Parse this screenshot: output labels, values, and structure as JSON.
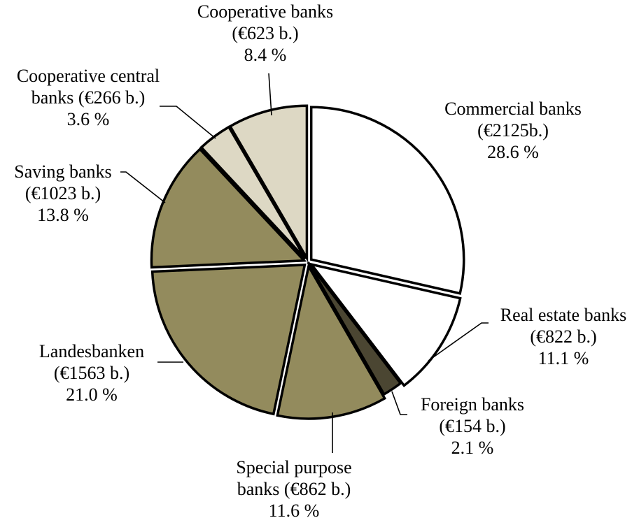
{
  "chart_data": {
    "type": "pie",
    "title": "",
    "start_angle_deg": 0,
    "direction": "clockwise",
    "slices": [
      {
        "id": "commercial",
        "label_lines": [
          "Commercial banks",
          "(€2125b.)",
          "28.6 %"
        ],
        "value": 2125,
        "percent": 28.6,
        "color": "#ffffff",
        "exploded": true
      },
      {
        "id": "real-estate",
        "label_lines": [
          "Real estate banks",
          "(€822 b.)",
          "11.1 %"
        ],
        "value": 822,
        "percent": 11.1,
        "color": "#ffffff",
        "exploded": true
      },
      {
        "id": "foreign",
        "label_lines": [
          "Foreign banks",
          "(€154 b.)",
          "2.1 %"
        ],
        "value": 154,
        "percent": 2.1,
        "color": "#4b4632",
        "exploded": false
      },
      {
        "id": "special-purpose",
        "label_lines": [
          "Special purpose",
          "banks (€862 b.)",
          "11.6 %"
        ],
        "value": 862,
        "percent": 11.6,
        "color": "#938b5d",
        "exploded": true
      },
      {
        "id": "landesbanken",
        "label_lines": [
          "Landesbanken",
          "(€1563 b.)",
          "21.0 %"
        ],
        "value": 1563,
        "percent": 21.0,
        "color": "#938b5d",
        "exploded": true
      },
      {
        "id": "saving",
        "label_lines": [
          "Saving banks",
          "(€1023 b.)",
          "13.8 %"
        ],
        "value": 1023,
        "percent": 13.8,
        "color": "#938b5d",
        "exploded": true
      },
      {
        "id": "coop-central",
        "label_lines": [
          "Cooperative central",
          "banks (€266 b.)",
          "3.6 %"
        ],
        "value": 266,
        "percent": 3.6,
        "color": "#ddd8c4",
        "exploded": true
      },
      {
        "id": "cooperative",
        "label_lines": [
          "Cooperative banks",
          "(€623 b.)",
          "8.4 %"
        ],
        "value": 623,
        "percent": 8.4,
        "color": "#ddd8c4",
        "exploded": true
      }
    ]
  }
}
